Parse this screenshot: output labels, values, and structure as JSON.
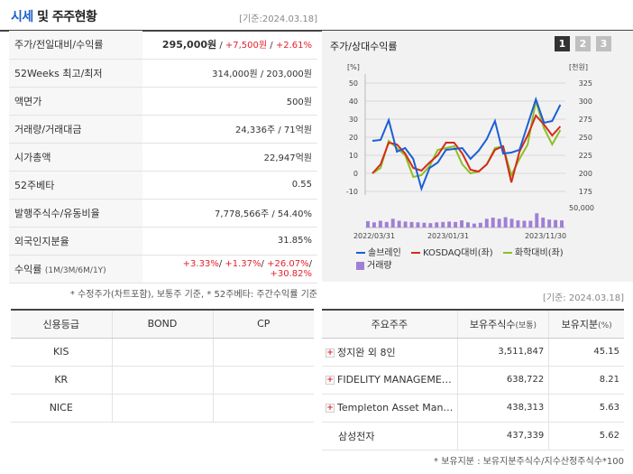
{
  "header": {
    "title_blue": "시세",
    "title_rest": " 및 주주현황",
    "date": "[기준:2024.03.18]"
  },
  "quote": {
    "rows": [
      {
        "label": "주가/전일대비/수익률",
        "price": "295,000원",
        "sep1": " / ",
        "change": "+7,500원",
        "sep2": " / ",
        "rate": "+2.61%"
      },
      {
        "label": "52Weeks 최고/최저",
        "value": "314,000원 / 203,000원"
      },
      {
        "label": "액면가",
        "value": "500원"
      },
      {
        "label": "거래량/거래대금",
        "value": "24,336주 / 71억원"
      },
      {
        "label": "시가총액",
        "value": "22,947억원"
      },
      {
        "label": "52주베타",
        "value": "0.55"
      },
      {
        "label": "발행주식수/유동비율",
        "value": "7,778,566주 / 54.40%"
      },
      {
        "label": "외국인지분율",
        "value": "31.85%"
      },
      {
        "label": "수익률",
        "label_small": "(1M/3M/6M/1Y)",
        "r1": "+3.33%",
        "r2": "+1.37%",
        "r3": "+26.07%",
        "r4": "+30.82%",
        "sep": "/ "
      }
    ],
    "note": "* 수정주가(차트포함), 보통주 기준, * 52주베타: 주간수익률 기준"
  },
  "chart": {
    "title": "주가/상대수익률",
    "tabs": [
      "1",
      "2",
      "3"
    ],
    "left_unit": "[%]",
    "right_unit": "[천원]",
    "volume_label": "50,000",
    "legend": {
      "a": "솔브레인",
      "b": "KOSDAQ대비(좌)",
      "c": "화학대비(좌)",
      "d": "거래량"
    },
    "colors": {
      "price": "#1a5fd6",
      "kosdaq": "#d62a1a",
      "chem": "#8cbf26",
      "volume": "#9f7fd6"
    }
  },
  "chart_data": {
    "type": "line",
    "x_ticks": [
      "2022/03/31",
      "2023/01/31",
      "2023/11/30"
    ],
    "y_left_ticks": [
      "50",
      "40",
      "30",
      "20",
      "10",
      "0",
      "-10"
    ],
    "y_left_range": [
      -10,
      50
    ],
    "y_right_ticks": [
      "325",
      "300",
      "275",
      "250",
      "225",
      "200",
      "175"
    ],
    "y_right_range": [
      175,
      325
    ],
    "series": [
      {
        "name": "솔브레인",
        "values": [
          18,
          18.5,
          29.5,
          12,
          14,
          8,
          -8.5,
          3,
          6,
          13,
          13.5,
          14,
          8,
          12.5,
          19,
          29,
          11,
          11.5,
          13,
          27,
          41,
          28,
          29,
          38
        ]
      },
      {
        "name": "KOSDAQ대비(좌)",
        "values": [
          0,
          5,
          17,
          16,
          11,
          3,
          1.5,
          6,
          10,
          17,
          17,
          11,
          2,
          1,
          5,
          13,
          15,
          -5,
          12,
          21,
          32,
          27,
          21,
          26
        ]
      },
      {
        "name": "화학대비(좌)",
        "values": [
          0,
          3,
          18,
          14,
          10,
          -2,
          -1,
          4,
          13,
          14,
          15,
          5,
          0,
          1,
          5,
          14,
          15,
          -1,
          8,
          16,
          40,
          25,
          16,
          24
        ]
      },
      {
        "name": "거래량",
        "values": [
          16000,
          13000,
          17000,
          14000,
          22000,
          17000,
          15000,
          14000,
          13000,
          12000,
          11000,
          13000,
          14000,
          15000,
          14000,
          18000,
          13000,
          10000,
          12000,
          22000,
          25000,
          22000,
          26000,
          22000,
          18000,
          17000,
          17000,
          36000,
          25000,
          20000,
          19000,
          18000
        ]
      }
    ]
  },
  "credit": {
    "headers": [
      "신용등급",
      "BOND",
      "CP"
    ],
    "rows": [
      {
        "agency": "KIS",
        "bond": "",
        "cp": ""
      },
      {
        "agency": "KR",
        "bond": "",
        "cp": ""
      },
      {
        "agency": "NICE",
        "bond": "",
        "cp": ""
      }
    ]
  },
  "holders": {
    "date": "[기준: 2024.03.18]",
    "headers": {
      "name": "주요주주",
      "shares": "보유주식수",
      "shares_unit": "(보통)",
      "ratio": "보유지분",
      "ratio_unit": "(%)"
    },
    "rows": [
      {
        "name": "정지완 외 8인",
        "shares": "3,511,847",
        "ratio": "45.15",
        "expandable": true
      },
      {
        "name": "FIDELITY MANAGEMENT & RESEARCH COMPANY",
        "shares": "638,722",
        "ratio": "8.21",
        "expandable": true
      },
      {
        "name": "Templeton Asset Management",
        "shares": "438,313",
        "ratio": "5.63",
        "expandable": true
      },
      {
        "name": "삼성전자",
        "shares": "437,339",
        "ratio": "5.62",
        "expandable": false
      }
    ],
    "note": "* 보유지분 : 보유지분주식수/지수산정주식수*100"
  }
}
